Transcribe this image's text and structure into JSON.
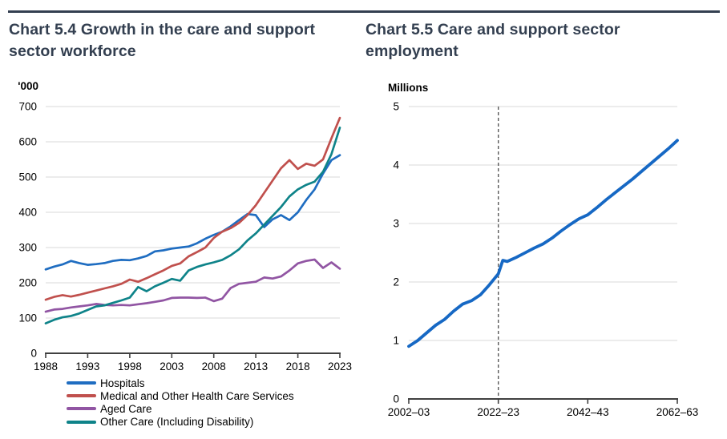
{
  "page": {
    "rule_color": "#333F50",
    "title_color": "#333F50",
    "background": "#FFFFFF"
  },
  "chart_data": [
    {
      "id": "chart-5-4",
      "type": "line",
      "title": "Chart 5.4 Growth in the care and support sector workforce",
      "unit_label": "'000",
      "xlim": [
        1988,
        2023
      ],
      "ylim": [
        0,
        700
      ],
      "grid": true,
      "grid_color": "#D9D9D9",
      "axis_color": "#404040",
      "tick_label_color": "#000000",
      "legend_position": "bottom-left",
      "y_ticks": [
        0,
        100,
        200,
        300,
        400,
        500,
        600,
        700
      ],
      "x_tick_values": [
        1988,
        1993,
        1998,
        2003,
        2008,
        2013,
        2018,
        2023
      ],
      "x_tick_labels": [
        "1988",
        "1993",
        "1998",
        "2003",
        "2008",
        "2013",
        "2018",
        "2023"
      ],
      "x": [
        1988,
        1989,
        1990,
        1991,
        1992,
        1993,
        1994,
        1995,
        1996,
        1997,
        1998,
        1999,
        2000,
        2001,
        2002,
        2003,
        2004,
        2005,
        2006,
        2007,
        2008,
        2009,
        2010,
        2011,
        2012,
        2013,
        2014,
        2015,
        2016,
        2017,
        2018,
        2019,
        2020,
        2021,
        2022,
        2023
      ],
      "series": [
        {
          "name": "Hospitals",
          "color": "#1F6DC1",
          "values": [
            238,
            246,
            252,
            262,
            256,
            251,
            253,
            256,
            262,
            265,
            264,
            269,
            276,
            289,
            292,
            297,
            300,
            303,
            312,
            325,
            336,
            345,
            360,
            378,
            395,
            392,
            358,
            380,
            392,
            378,
            400,
            435,
            465,
            510,
            548,
            562
          ]
        },
        {
          "name": "Medical and Other Health Care Services",
          "color": "#C0504D",
          "values": [
            152,
            160,
            165,
            161,
            166,
            172,
            178,
            184,
            190,
            197,
            209,
            203,
            213,
            224,
            235,
            248,
            255,
            275,
            287,
            300,
            327,
            345,
            355,
            370,
            392,
            420,
            455,
            490,
            525,
            548,
            523,
            538,
            532,
            550,
            610,
            668
          ]
        },
        {
          "name": "Aged Care",
          "color": "#9155A3",
          "values": [
            118,
            124,
            126,
            130,
            133,
            136,
            140,
            137,
            136,
            137,
            136,
            139,
            142,
            146,
            150,
            157,
            158,
            158,
            157,
            158,
            148,
            155,
            185,
            197,
            200,
            203,
            215,
            212,
            218,
            235,
            255,
            262,
            266,
            242,
            258,
            240
          ]
        },
        {
          "name": "Other Care (Including Disability)",
          "color": "#0E8389",
          "values": [
            85,
            95,
            102,
            106,
            113,
            123,
            133,
            136,
            143,
            150,
            158,
            188,
            176,
            190,
            200,
            211,
            206,
            235,
            245,
            252,
            258,
            265,
            278,
            295,
            320,
            340,
            365,
            390,
            415,
            445,
            465,
            478,
            487,
            515,
            565,
            640
          ]
        }
      ]
    },
    {
      "id": "chart-5-5",
      "type": "line",
      "title": "Chart 5.5 Care and support sector employment",
      "unit_label": "Millions",
      "xlim": [
        2002,
        2062
      ],
      "ylim": [
        0,
        5
      ],
      "grid": true,
      "grid_color": "#D9D9D9",
      "axis_color": "#404040",
      "tick_label_color": "#000000",
      "dashed_vline_x": 2022,
      "dashed_vline_color": "#595959",
      "y_ticks": [
        0,
        1,
        2,
        3,
        4,
        5
      ],
      "x_tick_values": [
        2002,
        2022,
        2042,
        2062
      ],
      "x_tick_labels": [
        "2002–03",
        "2022–23",
        "2042–43",
        "2062–63"
      ],
      "x": [
        2002,
        2004,
        2006,
        2008,
        2010,
        2012,
        2014,
        2016,
        2018,
        2020,
        2022,
        2023,
        2024,
        2026,
        2028,
        2030,
        2032,
        2034,
        2036,
        2038,
        2040,
        2042,
        2044,
        2046,
        2048,
        2050,
        2052,
        2054,
        2056,
        2058,
        2060,
        2062
      ],
      "series": [
        {
          "name": "Care and support sector employment",
          "color": "#1668C4",
          "values": [
            0.9,
            1.0,
            1.13,
            1.26,
            1.36,
            1.5,
            1.62,
            1.68,
            1.78,
            1.95,
            2.14,
            2.37,
            2.35,
            2.42,
            2.5,
            2.58,
            2.65,
            2.75,
            2.87,
            2.98,
            3.08,
            3.15,
            3.27,
            3.4,
            3.52,
            3.64,
            3.76,
            3.89,
            4.02,
            4.15,
            4.28,
            4.42
          ]
        }
      ]
    }
  ]
}
